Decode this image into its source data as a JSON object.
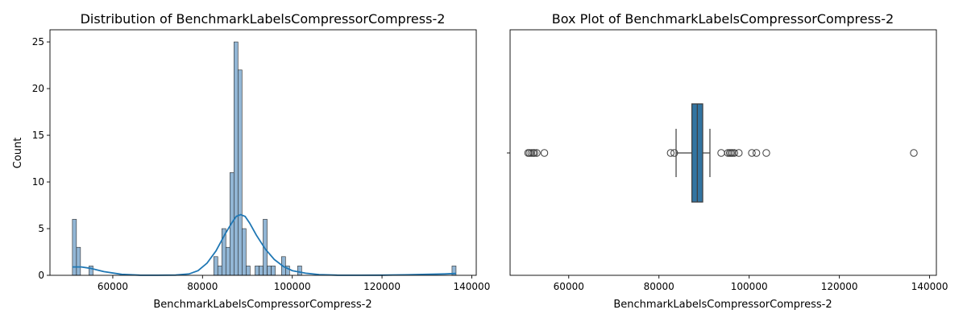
{
  "chart_data": [
    {
      "type": "histogram",
      "title": "Distribution of BenchmarkLabelsCompressorCompress-2",
      "xlabel": "BenchmarkLabelsCompressorCompress-2",
      "ylabel": "Count",
      "xlim": [
        46000,
        141000
      ],
      "ylim": [
        0,
        26.3
      ],
      "xticks": [
        60000,
        80000,
        100000,
        120000,
        140000
      ],
      "yticks": [
        0,
        5,
        10,
        15,
        20,
        25
      ],
      "bar_color": "#6d9ec7",
      "kde_color": "#1f77b4",
      "bins": [
        {
          "x0": 51000,
          "x1": 51900,
          "count": 6
        },
        {
          "x0": 51900,
          "x1": 52800,
          "count": 3
        },
        {
          "x0": 54700,
          "x1": 55600,
          "count": 1
        },
        {
          "x0": 82500,
          "x1": 83400,
          "count": 2
        },
        {
          "x0": 83400,
          "x1": 84300,
          "count": 1
        },
        {
          "x0": 84300,
          "x1": 85200,
          "count": 5
        },
        {
          "x0": 85200,
          "x1": 86100,
          "count": 3
        },
        {
          "x0": 86100,
          "x1": 87000,
          "count": 11
        },
        {
          "x0": 87000,
          "x1": 87900,
          "count": 25
        },
        {
          "x0": 87900,
          "x1": 88800,
          "count": 22
        },
        {
          "x0": 88800,
          "x1": 89700,
          "count": 5
        },
        {
          "x0": 89700,
          "x1": 90600,
          "count": 1
        },
        {
          "x0": 91700,
          "x1": 92600,
          "count": 1
        },
        {
          "x0": 92600,
          "x1": 93500,
          "count": 1
        },
        {
          "x0": 93500,
          "x1": 94400,
          "count": 6
        },
        {
          "x0": 94400,
          "x1": 95300,
          "count": 1
        },
        {
          "x0": 95300,
          "x1": 96200,
          "count": 1
        },
        {
          "x0": 97600,
          "x1": 98500,
          "count": 2
        },
        {
          "x0": 98500,
          "x1": 99400,
          "count": 1
        },
        {
          "x0": 101200,
          "x1": 102100,
          "count": 1
        },
        {
          "x0": 135600,
          "x1": 136500,
          "count": 1
        }
      ],
      "kde": {
        "x": [
          51000,
          53000,
          55000,
          58000,
          62000,
          66000,
          70000,
          74000,
          77000,
          79000,
          81000,
          83000,
          85000,
          86500,
          87500,
          88500,
          89500,
          90500,
          92000,
          94000,
          96000,
          98000,
          100000,
          103000,
          106000,
          110000,
          115000,
          120000,
          125000,
          130000,
          134000,
          136500
        ],
        "y": [
          0.9,
          0.9,
          0.75,
          0.4,
          0.1,
          0.02,
          0.01,
          0.03,
          0.15,
          0.5,
          1.3,
          2.6,
          4.4,
          5.6,
          6.3,
          6.5,
          6.3,
          5.6,
          4.3,
          2.8,
          1.7,
          0.95,
          0.5,
          0.22,
          0.08,
          0.02,
          0.01,
          0.02,
          0.05,
          0.1,
          0.15,
          0.2
        ]
      }
    },
    {
      "type": "box",
      "title": "Box Plot of BenchmarkLabelsCompressorCompress-2",
      "xlabel": "BenchmarkLabelsCompressorCompress-2",
      "xlim": [
        47000,
        141500
      ],
      "xticks": [
        60000,
        80000,
        100000,
        120000,
        140000
      ],
      "box_color": "#3274a1",
      "whisker_low": 83800,
      "q1": 87300,
      "median": 88500,
      "q3": 89700,
      "whisker_high": 91300,
      "outliers": [
        51000,
        51300,
        51700,
        52100,
        52400,
        52900,
        54600,
        82600,
        83400,
        93800,
        95300,
        95700,
        96000,
        96300,
        96700,
        97700,
        100600,
        101600,
        103800,
        136500
      ]
    }
  ]
}
